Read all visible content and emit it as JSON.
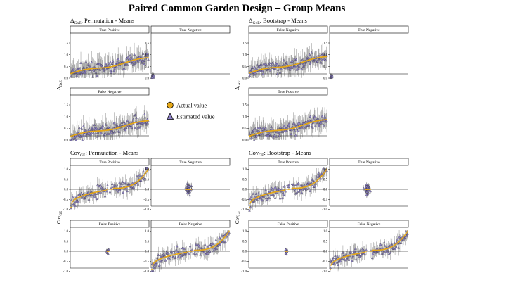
{
  "title": "Paired Common Garden Design – Group Means",
  "legend": [
    {
      "label": "Actual value",
      "shape": "circle",
      "color": "#e6a817"
    },
    {
      "label": "Estimated value",
      "shape": "triangle",
      "color": "#8e82c8"
    }
  ],
  "colors": {
    "actual": "#e6a817",
    "estimated": "#8e82c8",
    "error_bar": "#333333",
    "strip_border": "#000000"
  },
  "chart_data": [
    {
      "type": "scatter",
      "id": "dge-perm",
      "quadrant_title": {
        "prefix": "Δ",
        "sub": "GxE",
        "rest": ": Permutation - Means"
      },
      "ylabel": {
        "main": "Δ",
        "sub": "GxE"
      },
      "ylim": [
        0,
        1.8
      ],
      "yticks": [
        "0.0",
        "0.5",
        "1.0",
        "1.5"
      ],
      "panels": [
        {
          "label": "True Positive",
          "pattern": "delta-wide",
          "actual_range": [
            0.08,
            0.85
          ]
        },
        {
          "label": "True Negative",
          "pattern": "delta-narrow",
          "actual_range": [
            0.0,
            0.05
          ]
        },
        {
          "label": "False Negative",
          "pattern": "delta-wide",
          "actual_range": [
            0.05,
            0.8
          ]
        }
      ]
    },
    {
      "type": "scatter",
      "id": "dge-boot",
      "quadrant_title": {
        "prefix": "Δ",
        "sub": "GxE",
        "rest": ": Bootstrap - Means"
      },
      "ylabel": {
        "main": "Δ",
        "sub": "GxE"
      },
      "ylim": [
        0,
        1.8
      ],
      "yticks": [
        "0.0",
        "0.5",
        "1.0",
        "1.5"
      ],
      "panels": [
        {
          "label": "False Negative",
          "pattern": "delta-wide",
          "actual_range": [
            0.1,
            0.9
          ]
        },
        {
          "label": "True Negative",
          "pattern": "delta-narrow",
          "actual_range": [
            0.0,
            0.05
          ]
        },
        {
          "label": "True Positive",
          "pattern": "delta-wide",
          "actual_range": [
            0.05,
            0.85
          ]
        }
      ]
    },
    {
      "type": "scatter",
      "id": "cov-perm",
      "quadrant_title": {
        "prefix": "Cov",
        "sub": "GE",
        "rest": ": Permutation - Means"
      },
      "ylabel": {
        "main": "Cov",
        "sub": "GE"
      },
      "ylim": [
        -1.05,
        1.05
      ],
      "yticks": [
        "-1.0",
        "-0.5",
        "0.0",
        "0.5",
        "1.0"
      ],
      "panels": [
        {
          "label": "True Positive",
          "pattern": "cov-sigmoid-gap",
          "actual_range": [
            -0.8,
            1.0
          ]
        },
        {
          "label": "True Negative",
          "pattern": "cov-cluster",
          "actual_range": [
            0,
            0
          ]
        },
        {
          "label": "False Positive",
          "pattern": "cov-small-cluster",
          "actual_range": [
            0,
            0
          ]
        },
        {
          "label": "False Negative",
          "pattern": "cov-sigmoid-gap",
          "actual_range": [
            -0.9,
            0.9
          ]
        }
      ]
    },
    {
      "type": "scatter",
      "id": "cov-boot",
      "quadrant_title": {
        "prefix": "Cov",
        "sub": "GE",
        "rest": ": Bootstrap - Means"
      },
      "ylabel": {
        "main": "Cov",
        "sub": "GE"
      },
      "ylim": [
        -1.05,
        1.05
      ],
      "yticks": [
        "-1.0",
        "-0.5",
        "0.0",
        "0.5",
        "1.0"
      ],
      "panels": [
        {
          "label": "True Positive",
          "pattern": "cov-sigmoid-gap",
          "actual_range": [
            -0.8,
            1.0
          ]
        },
        {
          "label": "True Negative",
          "pattern": "cov-cluster",
          "actual_range": [
            0,
            0
          ]
        },
        {
          "label": "False Positive",
          "pattern": "cov-small-cluster",
          "actual_range": [
            0,
            0
          ]
        },
        {
          "label": "False Negative",
          "pattern": "cov-sigmoid-gap",
          "actual_range": [
            -0.9,
            0.9
          ]
        }
      ]
    }
  ]
}
